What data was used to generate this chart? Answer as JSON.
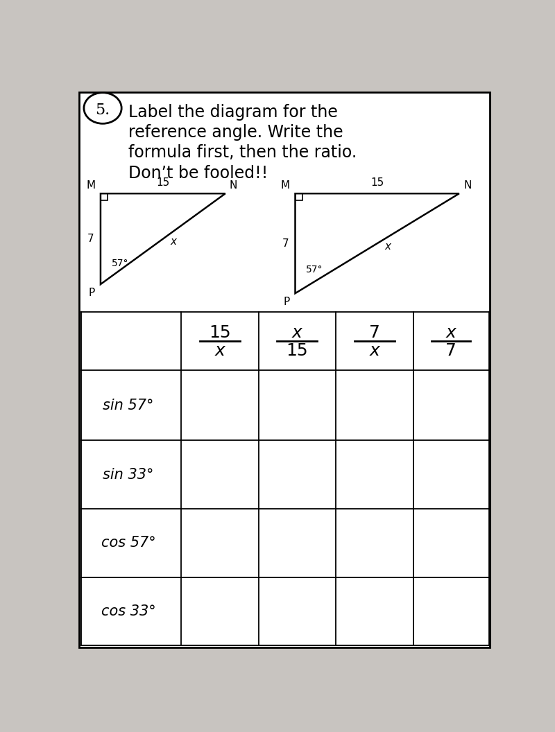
{
  "bg_color": "#c8c4c0",
  "title_lines": [
    "Label the diagram for the",
    "reference angle. Write the",
    "formula first, then the ratio.",
    "Don’t be fooled!!"
  ],
  "table": {
    "row_labels": [
      "sin 57°",
      "sin 33°",
      "cos 57°",
      "cos 33°"
    ],
    "header_fracs": [
      [
        "15",
        "x"
      ],
      [
        "x",
        "15"
      ],
      [
        "7",
        "x"
      ],
      [
        "x",
        "7"
      ]
    ]
  }
}
